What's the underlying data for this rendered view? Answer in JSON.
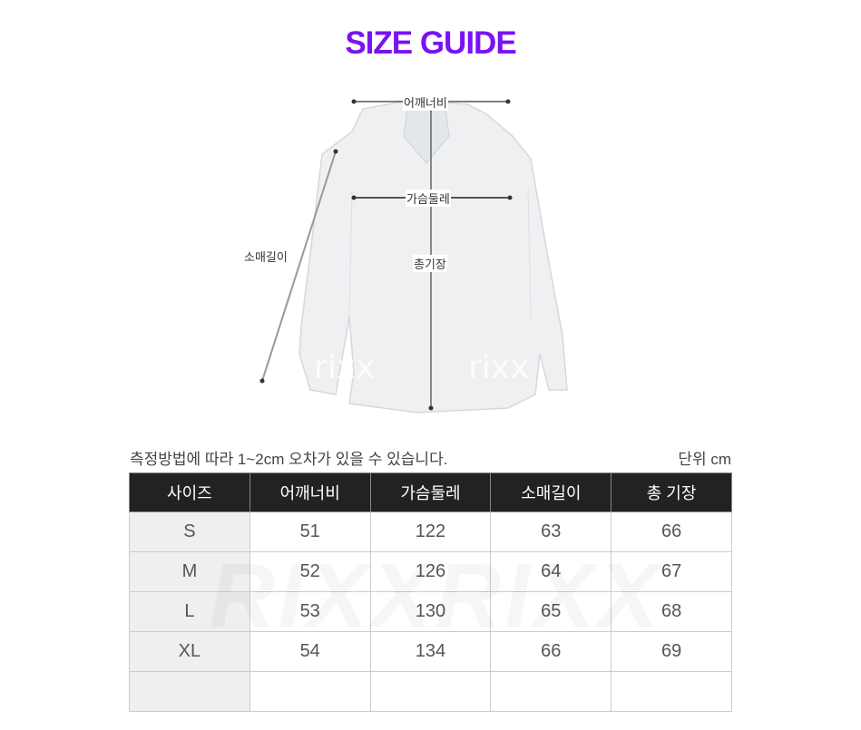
{
  "title": "SIZE GUIDE",
  "colors": {
    "title": "#7a12f4",
    "header_bg": "#222222",
    "first_col_bg": "#efefef"
  },
  "diagram": {
    "shoulder": "어깨너비",
    "chest": "가슴둘레",
    "sleeve": "소매길이",
    "length": "총기장",
    "watermark": "rixx"
  },
  "note": "측정방법에 따라 1~2cm 오차가 있을 수 있습니다.",
  "unit": "단위 cm",
  "table": {
    "headers": [
      "사이즈",
      "어깨너비",
      "가슴둘레",
      "소매길이",
      "총 기장"
    ],
    "rows": [
      [
        "S",
        "51",
        "122",
        "63",
        "66"
      ],
      [
        "M",
        "52",
        "126",
        "64",
        "67"
      ],
      [
        "L",
        "53",
        "130",
        "65",
        "68"
      ],
      [
        "XL",
        "54",
        "134",
        "66",
        "69"
      ],
      [
        "",
        "",
        "",
        "",
        ""
      ]
    ],
    "watermark": "RIXXRIXX"
  }
}
